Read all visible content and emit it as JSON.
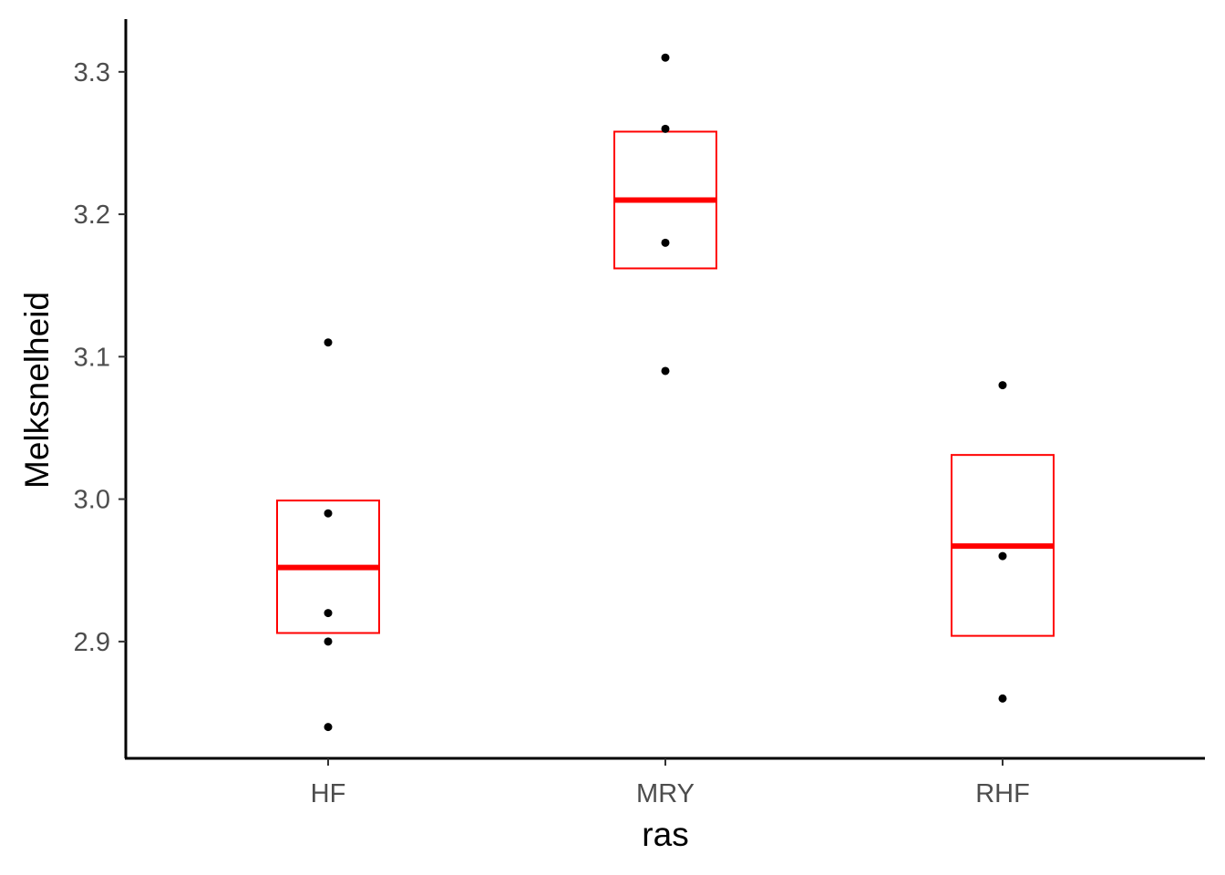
{
  "chart_data": {
    "type": "box",
    "xlabel": "ras",
    "ylabel": "Melksnelheid",
    "categories": [
      "HF",
      "MRY",
      "RHF"
    ],
    "ylim": [
      2.818,
      3.337
    ],
    "yticks": [
      2.9,
      3.0,
      3.1,
      3.2,
      3.3
    ],
    "ytick_labels": [
      "2.9",
      "3.0",
      "3.1",
      "3.2",
      "3.3"
    ],
    "points": [
      {
        "category": "HF",
        "values": [
          3.11,
          2.99,
          2.92,
          2.9,
          2.84
        ]
      },
      {
        "category": "MRY",
        "values": [
          3.31,
          3.26,
          3.18,
          3.09
        ]
      },
      {
        "category": "RHF",
        "values": [
          3.08,
          2.96,
          2.86
        ]
      }
    ],
    "boxes": [
      {
        "category": "HF",
        "center": 2.952,
        "lower": 2.906,
        "upper": 2.999
      },
      {
        "category": "MRY",
        "center": 3.21,
        "lower": 3.162,
        "upper": 3.258
      },
      {
        "category": "RHF",
        "center": 2.967,
        "lower": 2.904,
        "upper": 3.031
      }
    ],
    "colors": {
      "box": "#ff0000",
      "points": "#000000",
      "axis": "#000000",
      "tick_text": "#4d4d4d"
    },
    "grid": false,
    "legend": "none"
  }
}
